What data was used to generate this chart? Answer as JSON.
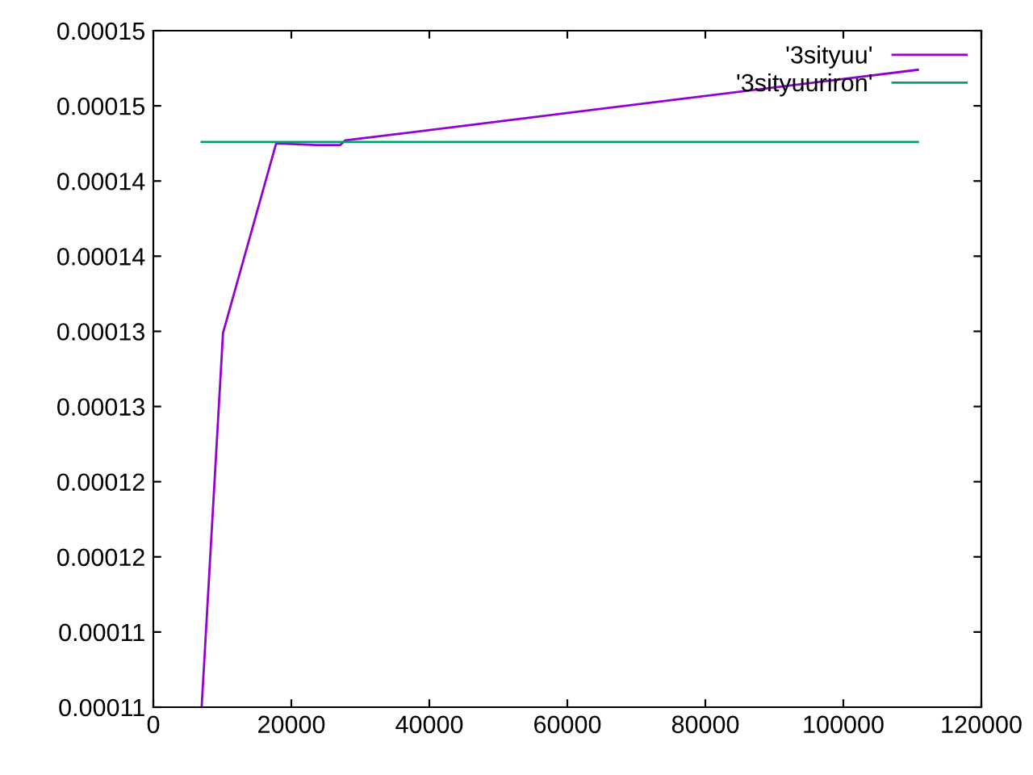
{
  "chart_data": {
    "type": "line",
    "xlim": [
      0,
      120000
    ],
    "xticks": [
      0,
      20000,
      40000,
      60000,
      80000,
      100000,
      120000
    ],
    "ylim": [
      0.00011,
      0.000155
    ],
    "yticks": [
      {
        "value": 0.00011,
        "label": "0.00011"
      },
      {
        "value": 0.000115,
        "label": "0.00011"
      },
      {
        "value": 0.00012,
        "label": "0.00012"
      },
      {
        "value": 0.000125,
        "label": "0.00012"
      },
      {
        "value": 0.00013,
        "label": "0.00013"
      },
      {
        "value": 0.000135,
        "label": "0.00013"
      },
      {
        "value": 0.00014,
        "label": "0.00014"
      },
      {
        "value": 0.000145,
        "label": "0.00014"
      },
      {
        "value": 0.00015,
        "label": "0.00015"
      },
      {
        "value": 0.000155,
        "label": "0.00015"
      }
    ],
    "grid": false,
    "legend": "top right",
    "marker": "none",
    "line_style": "solid",
    "series": [
      {
        "name": "'3sityuu'",
        "color": "#9400d3",
        "x": [
          7000,
          10100,
          17800,
          23600,
          27100,
          27800,
          110800
        ],
        "values": [
          0.00011,
          0.0001349,
          0.0001475,
          0.0001474,
          0.0001474,
          0.0001477,
          0.0001524
        ]
      },
      {
        "name": "'3sityuuriron'",
        "color": "#009e73",
        "x": [
          7000,
          110800
        ],
        "values": [
          0.0001476,
          0.0001476
        ]
      }
    ]
  }
}
